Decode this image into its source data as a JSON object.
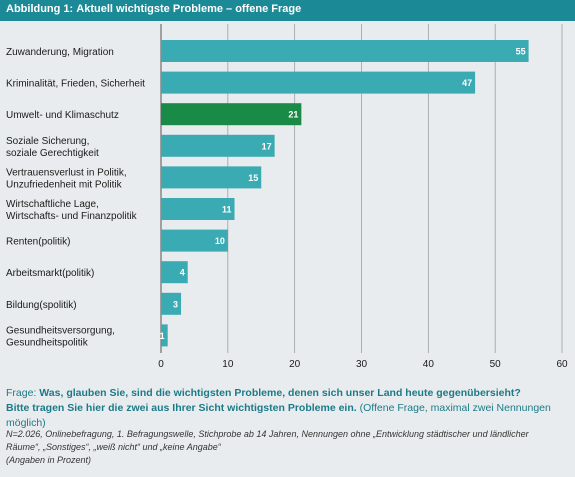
{
  "header": {
    "prefix": "Abbildung 1:",
    "title": "Aktuell wichtigste Probleme – offene Frage"
  },
  "colors": {
    "header_bg": "#1b8a96",
    "bar": "#3aaab3",
    "highlight_bar": "#1a8b46",
    "background": "#e9ecee"
  },
  "chart_data": {
    "type": "bar",
    "orientation": "horizontal",
    "title": "Aktuell wichtigste Probleme – offene Frage",
    "categories": [
      [
        "Zuwanderung, Migration"
      ],
      [
        "Kriminalität, Frieden, Sicherheit"
      ],
      [
        "Umwelt- und Klimaschutz"
      ],
      [
        "Soziale Sicherung,",
        "soziale Gerechtigkeit"
      ],
      [
        "Vertrauensverlust in Politik,",
        "Unzufriedenheit mit Politik"
      ],
      [
        "Wirtschaftliche Lage,",
        "Wirtschafts- und Finanzpolitik"
      ],
      [
        "Renten(politik)"
      ],
      [
        "Arbeitsmarkt(politik)"
      ],
      [
        "Bildung(spolitik)"
      ],
      [
        "Gesundheitsversorgung,",
        "Gesundheitspolitik"
      ]
    ],
    "values": [
      55,
      47,
      21,
      17,
      15,
      11,
      10,
      4,
      3,
      1
    ],
    "highlight_index": 2,
    "xlim": [
      0,
      60
    ],
    "xticks": [
      "0",
      "10",
      "20",
      "30",
      "40",
      "50",
      "60"
    ],
    "grid": true
  },
  "question": {
    "label": "Frage:",
    "q1": "Was, glauben Sie, sind die wichtigsten Probleme, denen sich unser Land heute gegenübersieht?",
    "q2": "Bitte tragen Sie hier die zwei aus Ihrer Sicht wichtigsten Probleme ein.",
    "note": "(Offene Frage, maximal zwei Nennungen möglich)"
  },
  "footnote": {
    "line1": "N=2.026, Onlinebefragung, 1. Befragungswelle, Stichprobe ab 14 Jahren, Nennungen ohne „Entwicklung städtischer und ländlicher",
    "line2": "Räume“, „Sonstiges“, „weiß nicht“ und „keine Angabe“",
    "line3": "(Angaben in Prozent)"
  }
}
